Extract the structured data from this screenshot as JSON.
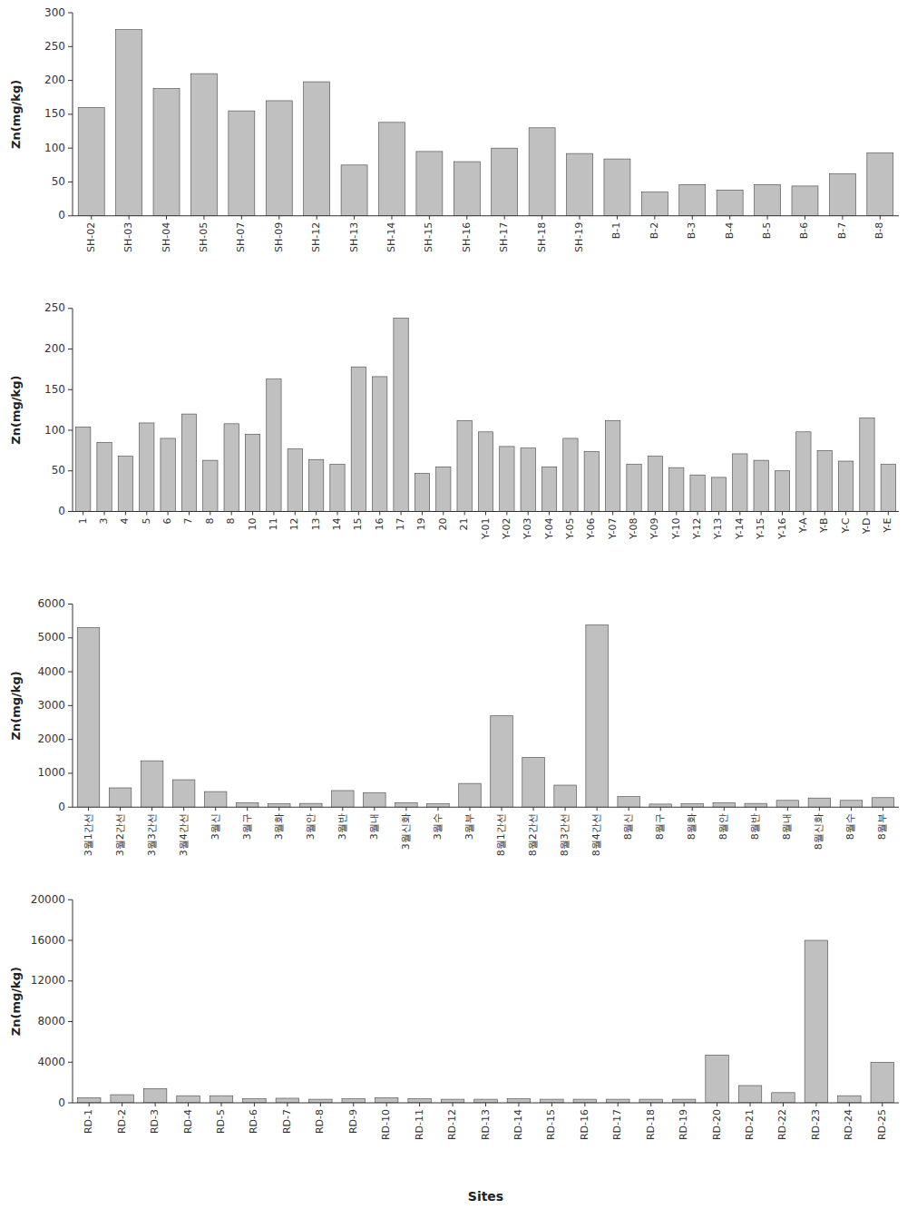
{
  "chart_data": [
    {
      "type": "bar",
      "categories": [
        "SH-02",
        "SH-03",
        "SH-04",
        "SH-05",
        "SH-07",
        "SH-09",
        "SH-12",
        "SH-13",
        "SH-14",
        "SH-15",
        "SH-16",
        "SH-17",
        "SH-18",
        "SH-19",
        "B-1",
        "B-2",
        "B-3",
        "B-4",
        "B-5",
        "B-6",
        "B-7",
        "B-8"
      ],
      "values": [
        160,
        275,
        188,
        210,
        155,
        170,
        198,
        75,
        138,
        95,
        80,
        100,
        130,
        92,
        84,
        35,
        46,
        38,
        46,
        44,
        62,
        93
      ],
      "ylim": [
        0,
        300
      ],
      "yticks": [
        0,
        50,
        100,
        150,
        200,
        250,
        300
      ],
      "ylabel": "Zn(mg/kg)",
      "color": "#c0c0c0"
    },
    {
      "type": "bar",
      "categories": [
        "1",
        "3",
        "4",
        "5",
        "6",
        "7",
        "8",
        "8",
        "10",
        "11",
        "12",
        "13",
        "14",
        "15",
        "16",
        "17",
        "19",
        "20",
        "21",
        "Y-01",
        "Y-02",
        "Y-03",
        "Y-04",
        "Y-05",
        "Y-06",
        "Y-07",
        "Y-08",
        "Y-09",
        "Y-10",
        "Y-12",
        "Y-13",
        "Y-14",
        "Y-15",
        "Y-16",
        "Y-A",
        "Y-B",
        "Y-C",
        "Y-D",
        "Y-E"
      ],
      "values": [
        104,
        85,
        68,
        109,
        90,
        120,
        63,
        108,
        95,
        163,
        77,
        64,
        58,
        178,
        166,
        238,
        47,
        55,
        112,
        98,
        80,
        78,
        55,
        90,
        74,
        112,
        58,
        68,
        54,
        45,
        42,
        71,
        63,
        50,
        98,
        75,
        62,
        115,
        58
      ],
      "ylim": [
        0,
        250
      ],
      "yticks": [
        0,
        50,
        100,
        150,
        200,
        250
      ],
      "ylabel": "Zn(mg/kg)",
      "color": "#c0c0c0"
    },
    {
      "type": "bar",
      "categories": [
        "3월1간선",
        "3월2간선",
        "3월3간선",
        "3월4간선",
        "3월신",
        "3월구",
        "3월화",
        "3월안",
        "3월반",
        "3월내",
        "3월신화",
        "3월수",
        "3월부",
        "8월1간선",
        "8월2간선",
        "8월3간선",
        "8월4간선",
        "8월신",
        "8월구",
        "8월화",
        "8월안",
        "8월반",
        "8월내",
        "8월신화",
        "8월수",
        "8월부"
      ],
      "values": [
        5300,
        570,
        1370,
        810,
        460,
        130,
        100,
        110,
        490,
        430,
        130,
        100,
        700,
        2700,
        1470,
        650,
        5380,
        310,
        90,
        100,
        130,
        110,
        200,
        270,
        200,
        280
      ],
      "ylim": [
        0,
        6000
      ],
      "yticks": [
        0,
        1000,
        2000,
        3000,
        4000,
        5000,
        6000
      ],
      "ylabel": "Zn(mg/kg)",
      "color": "#c0c0c0"
    },
    {
      "type": "bar",
      "categories": [
        "RD-1",
        "RD-2",
        "RD-3",
        "RD-4",
        "RD-5",
        "RD-6",
        "RD-7",
        "RD-8",
        "RD-9",
        "RD-10",
        "RD-11",
        "RD-12",
        "RD-13",
        "RD-14",
        "RD-15",
        "RD-16",
        "RD-17",
        "RD-18",
        "RD-19",
        "RD-20",
        "RD-21",
        "RD-22",
        "RD-23",
        "RD-24",
        "RD-25"
      ],
      "values": [
        500,
        800,
        1400,
        700,
        700,
        400,
        450,
        350,
        400,
        500,
        400,
        350,
        350,
        400,
        350,
        350,
        350,
        350,
        350,
        4700,
        1700,
        1000,
        16000,
        700,
        4000
      ],
      "ylim": [
        0,
        20000
      ],
      "yticks": [
        0,
        4000,
        8000,
        12000,
        16000,
        20000
      ],
      "ylabel": "Zn(mg/kg)",
      "xlabel": "Sites",
      "color": "#c0c0c0"
    }
  ]
}
